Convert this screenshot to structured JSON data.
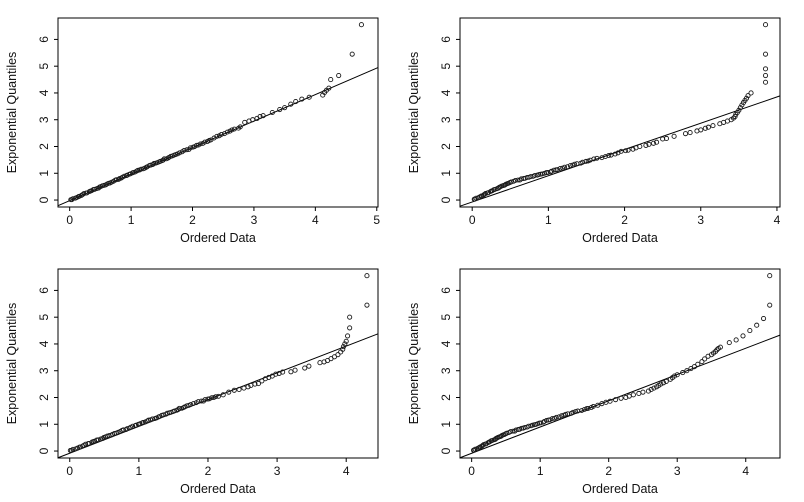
{
  "figure": {
    "background": "#ffffff",
    "axis_color": "#000000",
    "point_color": "#1a1a1a",
    "line_color": "#000000"
  },
  "chart_data": [
    {
      "id": "top-left",
      "type": "scatter",
      "title": "",
      "xlabel": "Ordered Data",
      "ylabel": "Exponential Quantiles",
      "xlim": [
        -0.19,
        5.02
      ],
      "ylim": [
        -0.26,
        6.8
      ],
      "xticks": [
        0,
        1,
        2,
        3,
        4,
        5
      ],
      "yticks": [
        0,
        1,
        2,
        3,
        4,
        5,
        6
      ],
      "grid": false,
      "legend": "none",
      "fit_line": {
        "x1": -0.19,
        "y1": -0.21,
        "x2": 5.02,
        "y2": 4.95
      },
      "runs": [
        {
          "x0": 0.01,
          "y0": 0.0,
          "x1": 1.75,
          "y1": 1.73,
          "n": 70,
          "wobble": 0.015
        },
        {
          "x0": 1.8,
          "y0": 1.77,
          "x1": 2.3,
          "y1": 2.25,
          "n": 16,
          "wobble": 0.02
        },
        {
          "x0": 2.35,
          "y0": 2.32,
          "x1": 2.78,
          "y1": 2.74,
          "n": 11,
          "wobble": 0.02
        }
      ],
      "points": [
        [
          2.85,
          2.9
        ],
        [
          2.92,
          2.95
        ],
        [
          2.98,
          3.0
        ],
        [
          3.05,
          3.05
        ],
        [
          3.1,
          3.12
        ],
        [
          3.15,
          3.15
        ],
        [
          3.3,
          3.27
        ],
        [
          3.42,
          3.38
        ],
        [
          3.5,
          3.45
        ],
        [
          3.6,
          3.58
        ],
        [
          3.68,
          3.68
        ],
        [
          3.78,
          3.77
        ],
        [
          3.9,
          3.84
        ],
        [
          4.12,
          3.92
        ],
        [
          4.15,
          4.02
        ],
        [
          4.18,
          4.1
        ],
        [
          4.22,
          4.18
        ],
        [
          4.25,
          4.5
        ],
        [
          4.38,
          4.65
        ],
        [
          4.6,
          5.45
        ],
        [
          4.75,
          6.55
        ]
      ]
    },
    {
      "id": "top-right",
      "type": "scatter",
      "title": "",
      "xlabel": "Ordered Data",
      "ylabel": "Exponential Quantiles",
      "xlim": [
        -0.16,
        4.04
      ],
      "ylim": [
        -0.26,
        6.8
      ],
      "xticks": [
        0,
        1,
        2,
        3,
        4
      ],
      "yticks": [
        0,
        1,
        2,
        3,
        4,
        5,
        6
      ],
      "grid": false,
      "legend": "none",
      "fit_line": {
        "x1": -0.16,
        "y1": -0.23,
        "x2": 4.04,
        "y2": 3.89
      },
      "runs": [
        {
          "x0": 0.02,
          "y0": 0.02,
          "x1": 0.5,
          "y1": 0.66,
          "n": 28,
          "wobble": 0.012
        },
        {
          "x0": 0.52,
          "y0": 0.68,
          "x1": 1.1,
          "y1": 1.12,
          "n": 24,
          "wobble": 0.015
        },
        {
          "x0": 1.12,
          "y0": 1.14,
          "x1": 1.55,
          "y1": 1.5,
          "n": 14,
          "wobble": 0.015
        },
        {
          "x0": 1.6,
          "y0": 1.53,
          "x1": 2.1,
          "y1": 1.9,
          "n": 12,
          "wobble": 0.02
        }
      ],
      "points": [
        [
          2.15,
          1.95
        ],
        [
          2.2,
          2.0
        ],
        [
          2.28,
          2.04
        ],
        [
          2.32,
          2.08
        ],
        [
          2.38,
          2.12
        ],
        [
          2.42,
          2.16
        ],
        [
          2.5,
          2.28
        ],
        [
          2.55,
          2.3
        ],
        [
          2.65,
          2.38
        ],
        [
          2.8,
          2.48
        ],
        [
          2.86,
          2.52
        ],
        [
          2.95,
          2.58
        ],
        [
          3.0,
          2.62
        ],
        [
          3.06,
          2.68
        ],
        [
          3.1,
          2.72
        ],
        [
          3.16,
          2.78
        ],
        [
          3.25,
          2.85
        ],
        [
          3.3,
          2.9
        ],
        [
          3.35,
          2.95
        ],
        [
          3.4,
          3.0
        ],
        [
          3.43,
          3.06
        ],
        [
          3.45,
          3.12
        ],
        [
          3.46,
          3.2
        ],
        [
          3.48,
          3.27
        ],
        [
          3.5,
          3.35
        ],
        [
          3.52,
          3.45
        ],
        [
          3.54,
          3.55
        ],
        [
          3.56,
          3.64
        ],
        [
          3.58,
          3.72
        ],
        [
          3.6,
          3.8
        ],
        [
          3.62,
          3.9
        ],
        [
          3.66,
          4.0
        ],
        [
          3.85,
          4.4
        ],
        [
          3.85,
          4.65
        ],
        [
          3.85,
          4.9
        ],
        [
          3.85,
          5.45
        ],
        [
          3.85,
          6.55
        ]
      ]
    },
    {
      "id": "bottom-left",
      "type": "scatter",
      "title": "",
      "xlabel": "Ordered Data",
      "ylabel": "Exponential Quantiles",
      "xlim": [
        -0.17,
        4.46
      ],
      "ylim": [
        -0.26,
        6.8
      ],
      "xticks": [
        0,
        1,
        2,
        3,
        4
      ],
      "yticks": [
        0,
        1,
        2,
        3,
        4,
        5,
        6
      ],
      "grid": false,
      "legend": "none",
      "fit_line": {
        "x1": -0.17,
        "y1": -0.25,
        "x2": 4.46,
        "y2": 4.38
      },
      "runs": [
        {
          "x0": 0.0,
          "y0": 0.01,
          "x1": 1.75,
          "y1": 1.74,
          "n": 68,
          "wobble": 0.015
        },
        {
          "x0": 1.8,
          "y0": 1.78,
          "x1": 2.15,
          "y1": 2.05,
          "n": 12,
          "wobble": 0.02
        }
      ],
      "points": [
        [
          2.22,
          2.1
        ],
        [
          2.3,
          2.2
        ],
        [
          2.38,
          2.27
        ],
        [
          2.45,
          2.3
        ],
        [
          2.52,
          2.35
        ],
        [
          2.58,
          2.4
        ],
        [
          2.62,
          2.45
        ],
        [
          2.68,
          2.5
        ],
        [
          2.73,
          2.52
        ],
        [
          2.78,
          2.62
        ],
        [
          2.83,
          2.7
        ],
        [
          2.88,
          2.75
        ],
        [
          2.93,
          2.8
        ],
        [
          2.98,
          2.87
        ],
        [
          3.03,
          2.9
        ],
        [
          3.08,
          2.95
        ],
        [
          3.2,
          2.96
        ],
        [
          3.26,
          3.02
        ],
        [
          3.4,
          3.1
        ],
        [
          3.46,
          3.17
        ],
        [
          3.62,
          3.3
        ],
        [
          3.68,
          3.33
        ],
        [
          3.73,
          3.38
        ],
        [
          3.78,
          3.45
        ],
        [
          3.83,
          3.52
        ],
        [
          3.88,
          3.6
        ],
        [
          3.92,
          3.7
        ],
        [
          3.95,
          3.8
        ],
        [
          3.96,
          3.9
        ],
        [
          3.98,
          4.0
        ],
        [
          4.0,
          4.1
        ],
        [
          4.02,
          4.3
        ],
        [
          4.05,
          4.6
        ],
        [
          4.05,
          5.0
        ],
        [
          4.3,
          5.45
        ],
        [
          4.3,
          6.55
        ]
      ]
    },
    {
      "id": "bottom-right",
      "type": "scatter",
      "title": "",
      "xlabel": "Ordered Data",
      "ylabel": "Exponential Quantiles",
      "xlim": [
        -0.17,
        4.5
      ],
      "ylim": [
        -0.26,
        6.8
      ],
      "xticks": [
        0,
        1,
        2,
        3,
        4
      ],
      "yticks": [
        0,
        1,
        2,
        3,
        4,
        5,
        6
      ],
      "grid": false,
      "legend": "none",
      "fit_line": {
        "x1": -0.17,
        "y1": -0.25,
        "x2": 4.5,
        "y2": 4.33
      },
      "runs": [
        {
          "x0": 0.02,
          "y0": 0.02,
          "x1": 0.5,
          "y1": 0.65,
          "n": 28,
          "wobble": 0.012
        },
        {
          "x0": 0.52,
          "y0": 0.67,
          "x1": 1.12,
          "y1": 1.15,
          "n": 24,
          "wobble": 0.015
        },
        {
          "x0": 1.14,
          "y0": 1.17,
          "x1": 1.48,
          "y1": 1.45,
          "n": 11,
          "wobble": 0.015
        },
        {
          "x0": 1.52,
          "y0": 1.47,
          "x1": 1.78,
          "y1": 1.67,
          "n": 8,
          "wobble": 0.02
        }
      ],
      "points": [
        [
          1.84,
          1.71
        ],
        [
          1.9,
          1.77
        ],
        [
          1.96,
          1.82
        ],
        [
          2.02,
          1.86
        ],
        [
          2.1,
          1.92
        ],
        [
          2.18,
          1.97
        ],
        [
          2.25,
          2.0
        ],
        [
          2.3,
          2.05
        ],
        [
          2.36,
          2.1
        ],
        [
          2.44,
          2.15
        ],
        [
          2.5,
          2.2
        ],
        [
          2.58,
          2.24
        ],
        [
          2.62,
          2.3
        ],
        [
          2.66,
          2.35
        ],
        [
          2.7,
          2.4
        ],
        [
          2.73,
          2.45
        ],
        [
          2.76,
          2.5
        ],
        [
          2.8,
          2.55
        ],
        [
          2.84,
          2.6
        ],
        [
          2.9,
          2.68
        ],
        [
          2.93,
          2.74
        ],
        [
          2.96,
          2.8
        ],
        [
          3.0,
          2.85
        ],
        [
          3.08,
          2.93
        ],
        [
          3.14,
          3.0
        ],
        [
          3.2,
          3.08
        ],
        [
          3.25,
          3.15
        ],
        [
          3.3,
          3.24
        ],
        [
          3.36,
          3.34
        ],
        [
          3.4,
          3.44
        ],
        [
          3.45,
          3.54
        ],
        [
          3.5,
          3.6
        ],
        [
          3.53,
          3.66
        ],
        [
          3.56,
          3.72
        ],
        [
          3.58,
          3.78
        ],
        [
          3.6,
          3.83
        ],
        [
          3.63,
          3.88
        ],
        [
          3.76,
          4.05
        ],
        [
          3.86,
          4.15
        ],
        [
          3.96,
          4.3
        ],
        [
          4.06,
          4.5
        ],
        [
          4.16,
          4.7
        ],
        [
          4.26,
          4.95
        ],
        [
          4.35,
          5.45
        ],
        [
          4.35,
          6.55
        ]
      ]
    }
  ]
}
